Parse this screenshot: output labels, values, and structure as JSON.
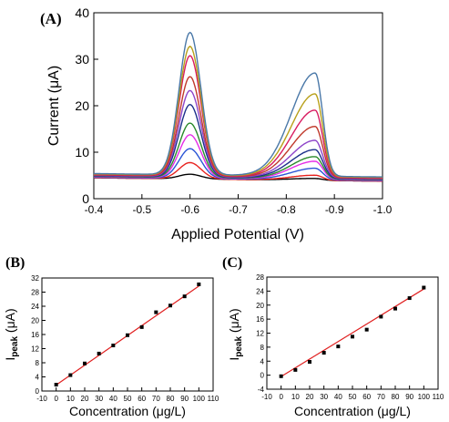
{
  "chart_data": [
    {
      "panel": "(A)",
      "type": "line",
      "xlabel": "Applied Potential (V)",
      "ylabel": "Current (μA)",
      "xlim": [
        -0.4,
        -1.0
      ],
      "ylim": [
        0,
        40
      ],
      "xticks": [
        "-0.4",
        "-0.5",
        "-0.6",
        "-0.7",
        "-0.8",
        "-0.9",
        "-1.0"
      ],
      "yticks": [
        "0",
        "10",
        "20",
        "30",
        "40"
      ],
      "peak1_potential": -0.6,
      "peak2_potential": -0.86,
      "series": [
        {
          "color": "#000000",
          "baseline": 4.5,
          "peak1": 5.5,
          "peak2": 4.3
        },
        {
          "color": "#e8231f",
          "baseline": 4.5,
          "peak1": 8.0,
          "peak2": 5.0
        },
        {
          "color": "#2b55d6",
          "baseline": 4.6,
          "peak1": 11.0,
          "peak2": 6.5
        },
        {
          "color": "#e62ce6",
          "baseline": 4.7,
          "peak1": 14.0,
          "peak2": 8.0
        },
        {
          "color": "#2a8a2a",
          "baseline": 4.8,
          "peak1": 16.5,
          "peak2": 9.0
        },
        {
          "color": "#1b2f8a",
          "baseline": 4.9,
          "peak1": 20.5,
          "peak2": 10.5
        },
        {
          "color": "#8e44c9",
          "baseline": 5.0,
          "peak1": 23.5,
          "peak2": 12.5
        },
        {
          "color": "#c0392b",
          "baseline": 5.1,
          "peak1": 26.5,
          "peak2": 15.5
        },
        {
          "color": "#d81b60",
          "baseline": 5.2,
          "peak1": 31.0,
          "peak2": 19.0
        },
        {
          "color": "#b8a01a",
          "baseline": 5.3,
          "peak1": 33.0,
          "peak2": 22.5
        },
        {
          "color": "#4a78a8",
          "baseline": 5.4,
          "peak1": 36.0,
          "peak2": 27.0
        }
      ]
    },
    {
      "panel": "(B)",
      "type": "scatter",
      "xlabel": "Concentration (μg/L)",
      "ylabel_main": "I",
      "ylabel_sub": "peak",
      "ylabel_unit": " (μA)",
      "xlim": [
        -10,
        110
      ],
      "ylim": [
        0,
        32
      ],
      "xticks": [
        "-10",
        "0",
        "10",
        "20",
        "30",
        "40",
        "50",
        "60",
        "70",
        "80",
        "90",
        "100",
        "110"
      ],
      "yticks": [
        "0",
        "4",
        "8",
        "12",
        "16",
        "20",
        "24",
        "28",
        "32"
      ],
      "x": [
        0,
        10,
        20,
        30,
        40,
        50,
        60,
        70,
        80,
        90,
        100
      ],
      "y": [
        1.8,
        4.5,
        7.8,
        10.6,
        12.9,
        15.8,
        18.1,
        22.3,
        24.2,
        26.8,
        30.2
      ],
      "fit": {
        "slope": 0.28,
        "intercept": 1.7
      }
    },
    {
      "panel": "(C)",
      "type": "scatter",
      "xlabel": "Concentration (μg/L)",
      "ylabel_main": "I",
      "ylabel_sub": "peak",
      "ylabel_unit": " (μA)",
      "xlim": [
        -10,
        110
      ],
      "ylim": [
        -4,
        28
      ],
      "xticks": [
        "-10",
        "0",
        "10",
        "20",
        "30",
        "40",
        "50",
        "60",
        "70",
        "80",
        "90",
        "100",
        "110"
      ],
      "yticks": [
        "-4",
        "0",
        "4",
        "8",
        "12",
        "16",
        "20",
        "24",
        "28"
      ],
      "x": [
        0,
        10,
        20,
        30,
        40,
        50,
        60,
        70,
        80,
        90,
        100
      ],
      "y": [
        -0.3,
        1.5,
        3.8,
        6.4,
        8.2,
        11.0,
        13.0,
        16.7,
        19.0,
        22.0,
        25.0
      ],
      "fit": {
        "slope": 0.25,
        "intercept": -0.4
      }
    }
  ]
}
